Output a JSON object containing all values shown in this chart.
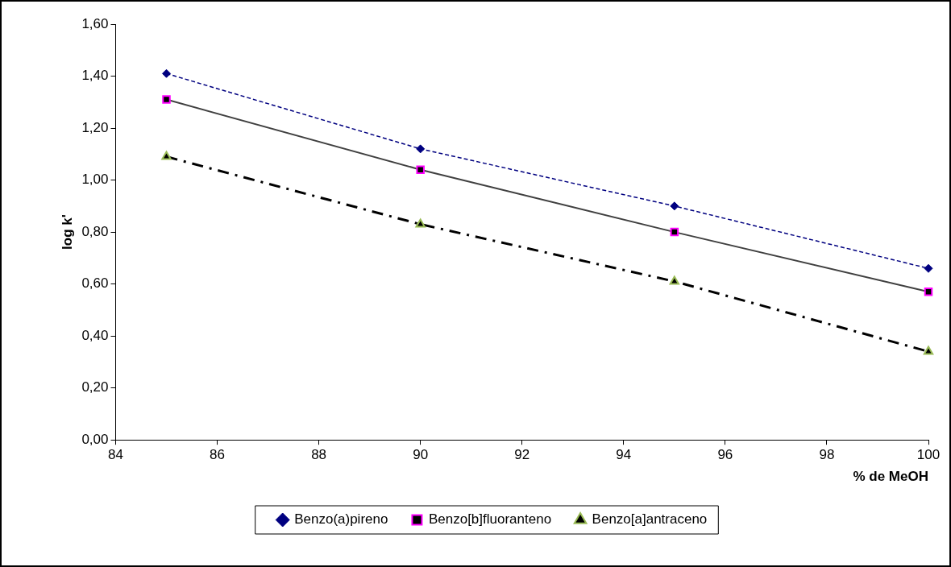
{
  "chart_data": {
    "type": "line",
    "xlabel": "% de MeOH",
    "ylabel": "log k'",
    "xlim": [
      84,
      100
    ],
    "xticks": [
      84,
      86,
      88,
      90,
      92,
      94,
      96,
      98,
      100
    ],
    "ylim": [
      0,
      1.6
    ],
    "yticks": [
      {
        "value": 0,
        "label": "0,00"
      },
      {
        "value": 0.2,
        "label": "0,20"
      },
      {
        "value": 0.4,
        "label": "0,40"
      },
      {
        "value": 0.6,
        "label": "0,60"
      },
      {
        "value": 0.8,
        "label": "0,80"
      },
      {
        "value": 1,
        "label": "1,00"
      },
      {
        "value": 1.2,
        "label": "1,20"
      },
      {
        "value": 1.4,
        "label": "1,40"
      },
      {
        "value": 1.6,
        "label": "1,60"
      }
    ],
    "grid": false,
    "legend": "bottom",
    "series": [
      {
        "name": "Benzo(a)pireno",
        "color": "#000080",
        "x": [
          85,
          90,
          95,
          100
        ],
        "values": [
          1.41,
          1.12,
          0.9,
          0.66
        ],
        "marker": "diamond",
        "line_style": "dashed"
      },
      {
        "name": "Benzo[b]fluoranteno",
        "color": "#404040",
        "x": [
          85,
          90,
          95,
          100
        ],
        "values": [
          1.31,
          1.04,
          0.8,
          0.57
        ],
        "marker": "square",
        "line_style": "solid"
      },
      {
        "name": "Benzo[a]antraceno",
        "color": "#000000",
        "x": [
          85,
          90,
          95,
          100
        ],
        "values": [
          1.09,
          0.83,
          0.61,
          0.34
        ],
        "marker": "triangle",
        "line_style": "dashed"
      }
    ]
  }
}
